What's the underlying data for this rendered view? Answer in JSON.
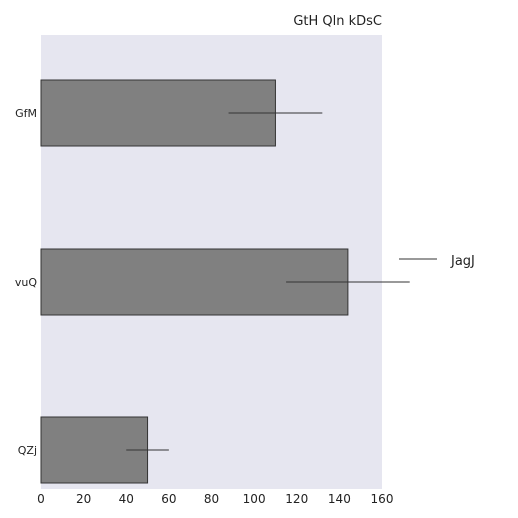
{
  "chart_data": {
    "type": "bar",
    "orientation": "horizontal",
    "title": "GtH Qln kDsC",
    "xlabel": "",
    "ylabel": "",
    "categories": [
      "GfM",
      "vuQ",
      "QZj"
    ],
    "series": [
      {
        "name": "JagJ",
        "values": [
          110,
          144,
          50
        ],
        "error": [
          22,
          29,
          10
        ]
      }
    ],
    "xlim": [
      0,
      160
    ],
    "x_ticks": [
      0,
      20,
      40,
      60,
      80,
      100,
      120,
      140,
      160
    ],
    "grid": false,
    "legend_position": "right",
    "colors": {
      "plot_background": "#e6e6f0",
      "bar_fill": "#808080",
      "bar_stroke": "#333333",
      "error_bar": "#333333"
    }
  }
}
